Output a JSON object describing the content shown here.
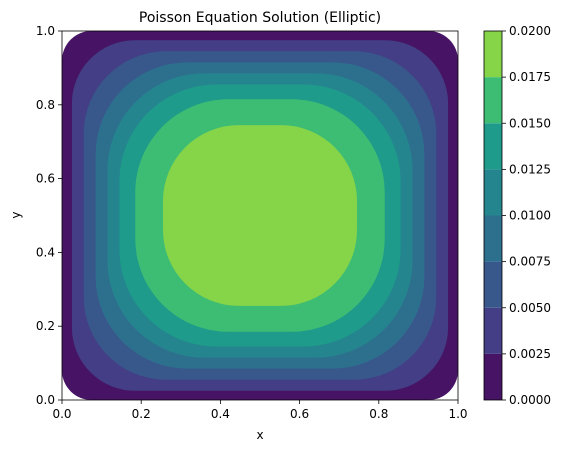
{
  "chart_data": {
    "type": "heatmap",
    "subtype": "filled-contour",
    "title": "Poisson Equation Solution (Elliptic)",
    "xlabel": "x",
    "ylabel": "y",
    "xlim": [
      0.0,
      1.0
    ],
    "ylim": [
      0.0,
      1.0
    ],
    "grid": false,
    "x_ticks": [
      "0.0",
      "0.2",
      "0.4",
      "0.6",
      "0.8",
      "1.0"
    ],
    "y_ticks": [
      "0.0",
      "0.2",
      "0.4",
      "0.6",
      "0.8",
      "1.0"
    ],
    "colorbar": {
      "placement": "right",
      "range": [
        0.0,
        0.02
      ],
      "levels": [
        0.0,
        0.0025,
        0.005,
        0.0075,
        0.01,
        0.0125,
        0.015,
        0.0175,
        0.02
      ],
      "tick_labels": [
        "0.0000",
        "0.0025",
        "0.0050",
        "0.0075",
        "0.0100",
        "0.0125",
        "0.0150",
        "0.0175",
        "0.0200"
      ],
      "colors": [
        "#471365",
        "#433E85",
        "#38588C",
        "#2D708E",
        "#25858E",
        "#1E9B8A",
        "#3DBC74",
        "#86D549",
        "#D8E219"
      ]
    },
    "field": {
      "shape": "separable sine product peaking at center",
      "peak_value": 0.0195,
      "peak_at": [
        0.5,
        0.5
      ]
    },
    "contour_bands": [
      {
        "level_min": 0.0,
        "half_width_at_center": 0.5,
        "corner_radius_fraction": 0.08
      },
      {
        "level_min": 0.0025,
        "half_width_at_center": 0.475,
        "corner_radius_fraction": 0.18
      },
      {
        "level_min": 0.005,
        "half_width_at_center": 0.445,
        "corner_radius_fraction": 0.25
      },
      {
        "level_min": 0.0075,
        "half_width_at_center": 0.415,
        "corner_radius_fraction": 0.3
      },
      {
        "level_min": 0.01,
        "half_width_at_center": 0.385,
        "corner_radius_fraction": 0.34
      },
      {
        "level_min": 0.0125,
        "half_width_at_center": 0.355,
        "corner_radius_fraction": 0.37
      },
      {
        "level_min": 0.015,
        "half_width_at_center": 0.315,
        "corner_radius_fraction": 0.4
      },
      {
        "level_min": 0.0175,
        "half_width_at_center": 0.245,
        "corner_radius_fraction": 0.42
      }
    ]
  }
}
